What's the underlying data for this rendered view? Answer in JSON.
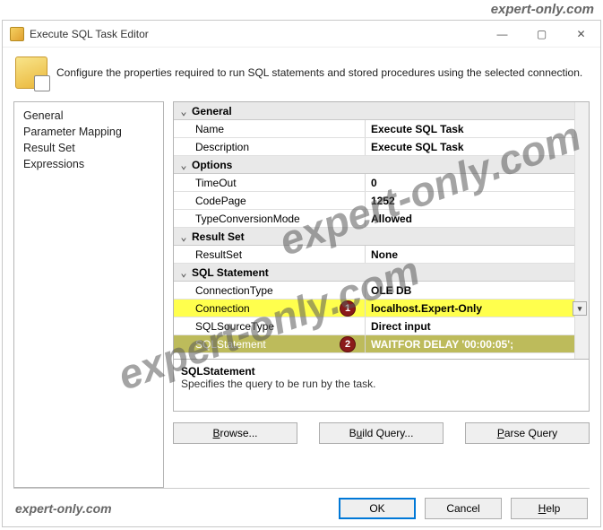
{
  "watermark": "expert-only.com",
  "window": {
    "title": "Execute SQL Task Editor",
    "description": "Configure the properties required to run SQL statements and stored procedures using the selected connection."
  },
  "nav": {
    "items": [
      "General",
      "Parameter Mapping",
      "Result Set",
      "Expressions"
    ]
  },
  "grid": {
    "groups": [
      {
        "label": "General",
        "rows": [
          {
            "name": "Name",
            "value": "Execute SQL Task"
          },
          {
            "name": "Description",
            "value": "Execute SQL Task"
          }
        ]
      },
      {
        "label": "Options",
        "rows": [
          {
            "name": "TimeOut",
            "value": "0"
          },
          {
            "name": "CodePage",
            "value": "1252"
          },
          {
            "name": "TypeConversionMode",
            "value": "Allowed"
          }
        ]
      },
      {
        "label": "Result Set",
        "rows": [
          {
            "name": "ResultSet",
            "value": "None"
          }
        ]
      },
      {
        "label": "SQL Statement",
        "rows": [
          {
            "name": "ConnectionType",
            "value": "OLE DB"
          },
          {
            "name": "Connection",
            "value": "localhost.Expert-Only",
            "highlight": "yellow",
            "badge": "1",
            "dropdown": true
          },
          {
            "name": "SQLSourceType",
            "value": "Direct input"
          },
          {
            "name": "SQLStatement",
            "value": "WAITFOR DELAY '00:00:05';",
            "highlight": "olive",
            "badge": "2"
          }
        ]
      }
    ]
  },
  "help": {
    "name": "SQLStatement",
    "desc": "Specifies the query to be run by the task."
  },
  "actions": {
    "browse": "Browse...",
    "build": "Build Query...",
    "parse": "Parse Query"
  },
  "dialog": {
    "ok": "OK",
    "cancel": "Cancel",
    "help": "Help"
  },
  "style": {
    "highlight_yellow": "#ffff4d",
    "highlight_olive": "#bdbb5b",
    "badge_bg": "#8b1a1a"
  }
}
